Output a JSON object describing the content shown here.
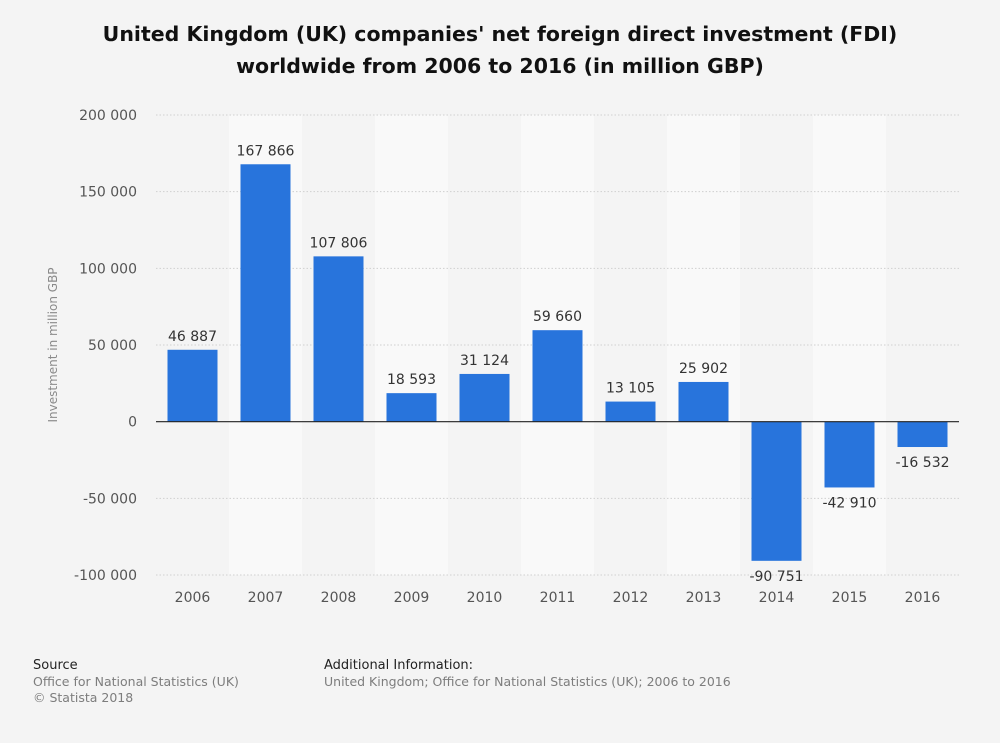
{
  "title_lines": [
    "United Kingdom (UK) companies' net foreign direct investment (FDI)",
    "worldwide from 2006 to 2016 (in million GBP)"
  ],
  "chart_data": {
    "type": "bar",
    "title": "United Kingdom (UK) companies' net foreign direct investment (FDI) worldwide from 2006 to 2016 (in million GBP)",
    "categories": [
      "2006",
      "2007",
      "2008",
      "2009",
      "2010",
      "2011",
      "2012",
      "2013",
      "2014",
      "2015",
      "2016"
    ],
    "values": [
      46887,
      167866,
      107806,
      18593,
      31124,
      59660,
      13105,
      25902,
      -90751,
      -42910,
      -16532
    ],
    "value_labels": [
      "46 887",
      "167 866",
      "107 806",
      "18 593",
      "31 124",
      "59 660",
      "13 105",
      "25 902",
      "-90 751",
      "-42 910",
      "-16 532"
    ],
    "xlabel": "",
    "ylabel": "Investment in million GBP",
    "ylim": [
      -100000,
      200000
    ],
    "yticks": [
      200000,
      150000,
      100000,
      50000,
      0,
      -50000,
      -100000
    ],
    "ytick_labels": [
      "200 000",
      "150 000",
      "100 000",
      "50 000",
      "0",
      "-50 000",
      "-100 000"
    ],
    "grid": true,
    "legend": "none",
    "bar_color": "#2874dc"
  },
  "footer": {
    "source_heading": "Source",
    "source_lines": [
      "Office for National Statistics (UK)",
      "© Statista 2018"
    ],
    "additional_heading": "Additional Information:",
    "additional_lines": [
      "United Kingdom; Office for National Statistics (UK); 2006 to 2016"
    ]
  }
}
